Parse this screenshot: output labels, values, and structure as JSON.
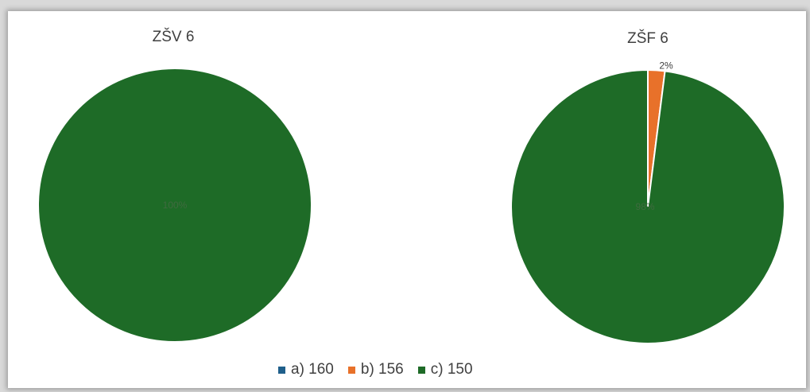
{
  "chart_data": [
    {
      "type": "pie",
      "title": "ZŠV 6",
      "categories": [
        "a) 160",
        "b) 156",
        "c) 150"
      ],
      "values": [
        0,
        0,
        100
      ],
      "data_labels": [
        "",
        "",
        "100%"
      ]
    },
    {
      "type": "pie",
      "title": "ZŠF 6",
      "categories": [
        "a) 160",
        "b) 156",
        "c) 150"
      ],
      "values": [
        0,
        2,
        98
      ],
      "data_labels": [
        "",
        "2%",
        "98%"
      ]
    }
  ],
  "legend": {
    "placement": "bottom",
    "items": [
      {
        "label": "a) 160",
        "color": "#1f5f8b"
      },
      {
        "label": "b) 156",
        "color": "#e8712a"
      },
      {
        "label": "c) 150",
        "color": "#1e6b27"
      }
    ]
  }
}
